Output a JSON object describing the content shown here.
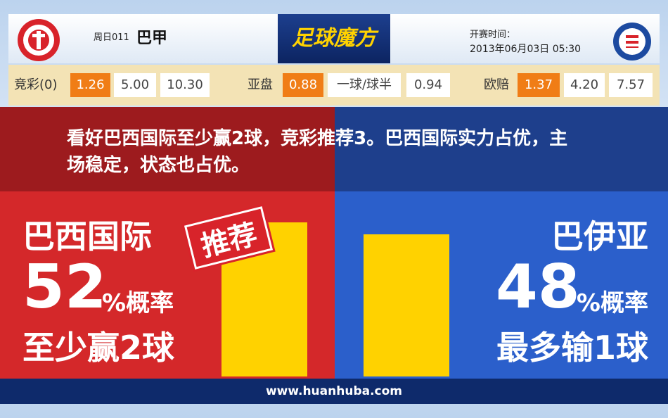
{
  "header": {
    "match_no": "周日011",
    "league": "巴甲",
    "brand": "足球魔方",
    "kickoff_label": "开赛时间：",
    "kickoff_time": "2013年06月03日 05:30"
  },
  "odds": [
    {
      "label": "竞彩(0)",
      "values": [
        "1.26",
        "5.00",
        "10.30"
      ]
    },
    {
      "label": "亚盘",
      "values": [
        "0.88",
        "一球/球半",
        "0.94"
      ]
    },
    {
      "label": "欧赔",
      "values": [
        "1.37",
        "4.20",
        "7.57"
      ]
    }
  ],
  "recommendation": "看好巴西国际至少赢2球，竞彩推荐3。巴西国际实力占优，主场稳定，状态也占优。",
  "home": {
    "name": "巴西国际",
    "probability": 52,
    "unit": "%概率",
    "outcome": "至少赢2球",
    "stamp": "推荐"
  },
  "away": {
    "name": "巴伊亚",
    "probability": 48,
    "unit": "%概率",
    "outcome": "最多输1球"
  },
  "footer": "www.huanhuba.com"
}
